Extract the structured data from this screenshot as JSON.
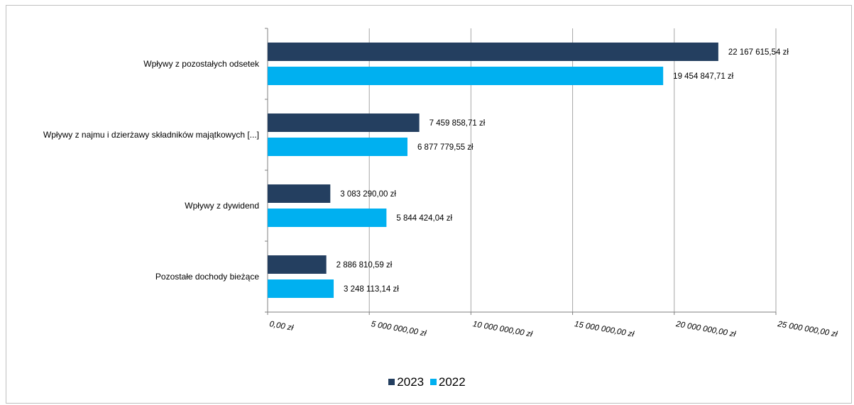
{
  "chart_data": {
    "type": "bar",
    "orientation": "horizontal",
    "categories": [
      "Wpływy z pozostałych odsetek",
      "Wpływy z najmu i dzierżawy składników majątkowych [...]",
      "Wpływy z dywidend",
      "Pozostałe dochody bieżące"
    ],
    "series": [
      {
        "name": "2023",
        "color": "#243f60",
        "values": [
          22167615.54,
          7459858.71,
          3083290.0,
          2886810.59
        ],
        "labels": [
          "22 167 615,54 zł",
          "7 459 858,71 zł",
          "3 083 290,00 zł",
          "2 886 810,59 zł"
        ]
      },
      {
        "name": "2022",
        "color": "#00b0f0",
        "values": [
          19454847.71,
          6877779.55,
          5844424.04,
          3248113.14
        ],
        "labels": [
          "19 454 847,71 zł",
          "6 877 779,55 zł",
          "5 844 424,04 zł",
          "3 248 113,14 zł"
        ]
      }
    ],
    "xlim": [
      0,
      25000000
    ],
    "xticks": [
      0,
      5000000,
      10000000,
      15000000,
      20000000,
      25000000
    ],
    "xtick_labels": [
      "0,00 zł",
      "5 000 000,00 zł",
      "10 000 000,00 zł",
      "15 000 000,00 zł",
      "20 000 000,00 zł",
      "25 000 000,00 zł"
    ],
    "grid": "vertical",
    "legend_position": "bottom"
  }
}
